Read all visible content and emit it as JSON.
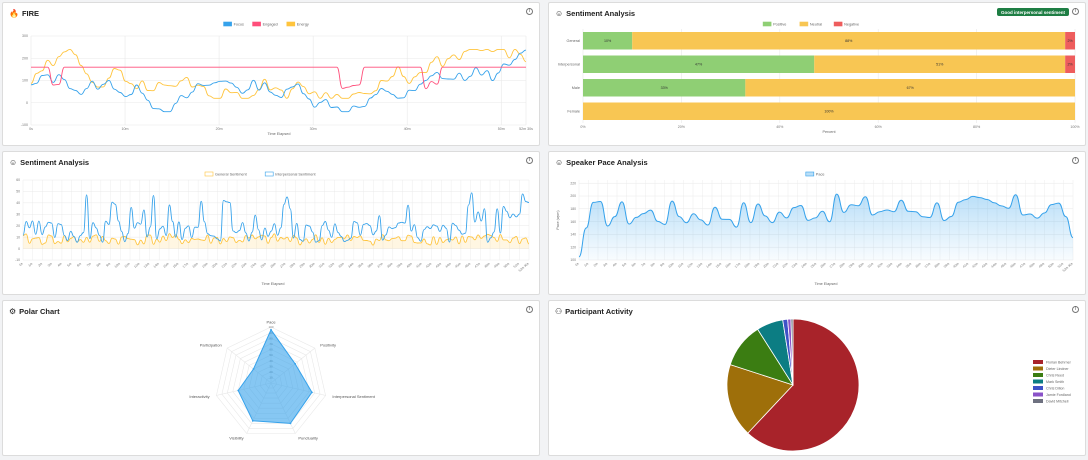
{
  "colors": {
    "grid": "#e8e8e8",
    "axis": "#999999",
    "positive": "#8fcf74",
    "neutral": "#f8c653",
    "negative": "#ee5d5d"
  },
  "fire": {
    "title": "FIRE",
    "icon": "flame-icon",
    "chart_data": {
      "type": "line",
      "xlabel": "Time Elapsed",
      "ylabel": "",
      "legend_position": "top",
      "y_ticks": [
        "-100",
        "0",
        "100",
        "200",
        "300"
      ],
      "x_ticks": [
        "0s",
        "10m",
        "20m",
        "30m",
        "40m",
        "50m",
        "52m 30s"
      ],
      "series": [
        {
          "name": "Focus",
          "color": "#36a2eb"
        },
        {
          "name": "Engaged",
          "color": "#ff4f7b"
        },
        {
          "name": "Energy",
          "color": "#ffc43d"
        }
      ]
    }
  },
  "sentiment_bar": {
    "title": "Sentiment Analysis",
    "icon": "smiley-icon",
    "badge": "Good interpersonal sentiment",
    "chart_data": {
      "type": "bar",
      "orientation": "horizontal",
      "stacked": true,
      "categories": [
        "General",
        "Interpersonal",
        "Male",
        "Female"
      ],
      "series": [
        {
          "name": "Positive",
          "color": "#8fcf74",
          "values": [
            10,
            47,
            33,
            0
          ]
        },
        {
          "name": "Neutral",
          "color": "#f8c653",
          "values": [
            88,
            51,
            67,
            100
          ]
        },
        {
          "name": "Negative",
          "color": "#ee5d5d",
          "values": [
            2,
            2,
            0,
            0
          ]
        }
      ],
      "data_labels": [
        [
          "10%",
          "88%",
          "2%"
        ],
        [
          "47%",
          "51%",
          "2%"
        ],
        [
          "33%",
          "67%",
          ""
        ],
        [
          "",
          "100%",
          ""
        ]
      ],
      "x_ticks": [
        "0%",
        "20%",
        "40%",
        "60%",
        "80%",
        "100%"
      ],
      "xlim": [
        0,
        100
      ],
      "xlabel": "Percent",
      "legend_position": "top"
    }
  },
  "sentiment_line": {
    "title": "Sentiment Analysis",
    "icon": "smiley-icon",
    "chart_data": {
      "type": "line",
      "xlabel": "Time Elapsed",
      "y_ticks": [
        "-10",
        "0",
        "10",
        "20",
        "30",
        "40",
        "50",
        "60"
      ],
      "ylim": [
        -10,
        60
      ],
      "x_ticks": [
        "0s",
        "1m",
        "2m",
        "3m",
        "4m",
        "5m",
        "6m",
        "7m",
        "8m",
        "9m",
        "10m",
        "11m",
        "12m",
        "13m",
        "14m",
        "15m",
        "16m",
        "17m",
        "18m",
        "19m",
        "20m",
        "21m",
        "22m",
        "23m",
        "24m",
        "25m",
        "26m",
        "27m",
        "28m",
        "29m",
        "30m",
        "31m",
        "32m",
        "33m",
        "34m",
        "35m",
        "36m",
        "37m",
        "38m",
        "39m",
        "40m",
        "41m",
        "42m",
        "43m",
        "44m",
        "45m",
        "46m",
        "47m",
        "48m",
        "49m",
        "50m",
        "51m",
        "52m 30s"
      ],
      "legend_position": "top",
      "series": [
        {
          "name": "General Sentiment",
          "color": "#ffc43d"
        },
        {
          "name": "Interpersonal Sentiment",
          "color": "#36a2eb"
        }
      ]
    }
  },
  "pace": {
    "title": "Speaker Pace Analysis",
    "icon": "person-icon",
    "chart_data": {
      "type": "area",
      "xlabel": "Time Elapsed",
      "ylabel": "Pace (wpm)",
      "y_ticks": [
        "100",
        "120",
        "140",
        "160",
        "180",
        "200",
        "220"
      ],
      "ylim": [
        100,
        225
      ],
      "x_ticks": [
        "0s",
        "1m",
        "2m",
        "3m",
        "4m",
        "5m",
        "6m",
        "7m",
        "8m",
        "9m",
        "10m",
        "11m",
        "12m",
        "13m",
        "14m",
        "15m",
        "16m",
        "17m",
        "18m",
        "19m",
        "20m",
        "21m",
        "22m",
        "23m",
        "24m",
        "25m",
        "26m",
        "27m",
        "28m",
        "29m",
        "30m",
        "31m",
        "32m",
        "33m",
        "34m",
        "35m",
        "36m",
        "37m",
        "38m",
        "39m",
        "40m",
        "41m",
        "42m",
        "43m",
        "44m",
        "45m",
        "46m",
        "47m",
        "48m",
        "49m",
        "50m",
        "51m",
        "52m 30s"
      ],
      "legend_position": "top",
      "series": [
        {
          "name": "Pace",
          "color": "#36a2eb"
        }
      ]
    }
  },
  "polar": {
    "title": "Polar Chart",
    "icon": "gear-icon",
    "chart_data": {
      "type": "radar",
      "categories": [
        "Pace",
        "Positivity",
        "Interpersonal Sentiment",
        "Punctuality",
        "Visibility",
        "Interactivity",
        "Participation"
      ],
      "values": [
        95,
        55,
        75,
        80,
        75,
        60,
        40
      ],
      "r_ticks": [
        "10",
        "20",
        "30",
        "40",
        "50",
        "60",
        "70",
        "80",
        "90",
        "100"
      ],
      "rmax": 100,
      "color": "#36a2eb"
    }
  },
  "participants": {
    "title": "Participant Activity",
    "icon": "people-icon",
    "chart_data": {
      "type": "pie",
      "legend_position": "right",
      "slices": [
        {
          "name": "Florian Behrner",
          "value": 62.0,
          "color": "#a8232a"
        },
        {
          "name": "Dieter Lindner",
          "value": 18.0,
          "color": "#9e6f0a"
        },
        {
          "name": "Chris Reed",
          "value": 11.0,
          "color": "#3b7d12"
        },
        {
          "name": "Mark Smith",
          "value": 6.5,
          "color": "#0c7d83"
        },
        {
          "name": "Chris Dillon",
          "value": 1.2,
          "color": "#3e52c7"
        },
        {
          "name": "Jamie Fordland",
          "value": 0.8,
          "color": "#8a52c8"
        },
        {
          "name": "David Mitchell",
          "value": 0.5,
          "color": "#6e7180"
        }
      ]
    }
  }
}
